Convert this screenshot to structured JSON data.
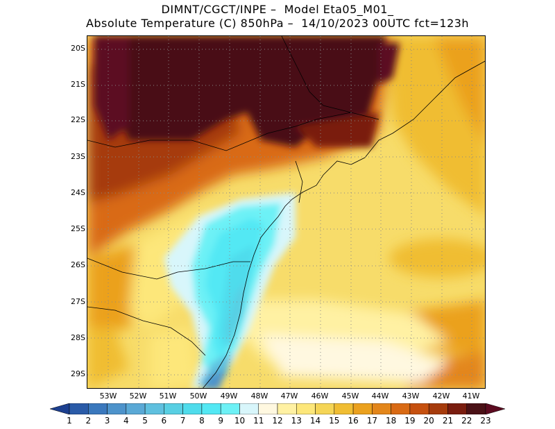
{
  "header": {
    "line1": "DIMNT/CGCT/INPE –  Model Eta05_M01_",
    "line2": "Absolute Temperature (C) 850hPa –  14/10/2023 00UTC fct=123h"
  },
  "map": {
    "lat_labels": [
      "20S",
      "21S",
      "22S",
      "23S",
      "24S",
      "25S",
      "26S",
      "27S",
      "28S",
      "29S"
    ],
    "lon_labels": [
      "53W",
      "52W",
      "51W",
      "50W",
      "49W",
      "48W",
      "47W",
      "46W",
      "45W",
      "44W",
      "43W",
      "42W",
      "41W"
    ],
    "lat_range": [
      -29.4,
      -19.85
    ],
    "lon_range": [
      -53.85,
      -40.35
    ],
    "coastline_color": "#000000",
    "grid": "dotted"
  },
  "colorbar": {
    "labels": [
      "1",
      "2",
      "3",
      "4",
      "5",
      "6",
      "7",
      "8",
      "9",
      "10",
      "11",
      "12",
      "13",
      "14",
      "15",
      "16",
      "17",
      "18",
      "19",
      "20",
      "21",
      "22",
      "23"
    ],
    "colors": [
      "#1c3f8f",
      "#2a5ba8",
      "#3a78bd",
      "#4d93cb",
      "#5aa9d6",
      "#5fc0df",
      "#58cfe3",
      "#4fdcec",
      "#53e8f4",
      "#6df1f6",
      "#d8f6fb",
      "#fff8e0",
      "#fff1a3",
      "#fde77a",
      "#f5d556",
      "#f0bd33",
      "#eba11e",
      "#e3861a",
      "#d96a14",
      "#c6500f",
      "#a63b0c",
      "#7a1d0f",
      "#4a1116",
      "#5c0b20"
    ]
  }
}
